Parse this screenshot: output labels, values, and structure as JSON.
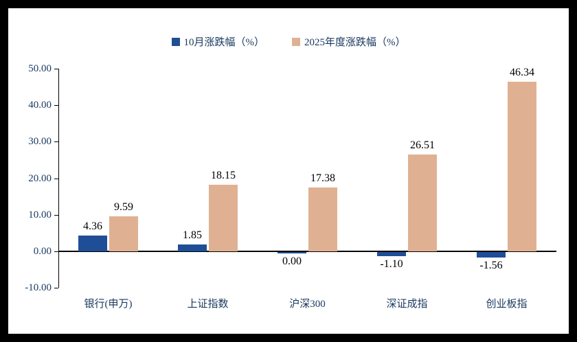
{
  "chart_data": {
    "type": "bar",
    "title": "",
    "categories": [
      "银行(申万)",
      "上证指数",
      "沪深300",
      "深证成指",
      "创业板指"
    ],
    "series": [
      {
        "name": "10月涨跌幅（%）",
        "color": "#1F4E97",
        "values": [
          4.36,
          1.85,
          0.0,
          -1.1,
          -1.56
        ]
      },
      {
        "name": "2025年度涨跌幅（%）",
        "color": "#DFB192",
        "values": [
          9.59,
          18.15,
          17.38,
          26.51,
          46.34
        ]
      }
    ],
    "ylim": [
      -10,
      50
    ],
    "yticks": [
      "50.00",
      "40.00",
      "30.00",
      "20.00",
      "10.00",
      "0.00",
      "-10.00"
    ],
    "xlabel": "",
    "ylabel": "",
    "grid": false,
    "legend_position": "top-center"
  },
  "colors": {
    "outer_frame": "#000000",
    "plot_background": "#FFFFFF",
    "axis": "#000000",
    "label_text": "#17375E",
    "value_text": "#000000"
  }
}
